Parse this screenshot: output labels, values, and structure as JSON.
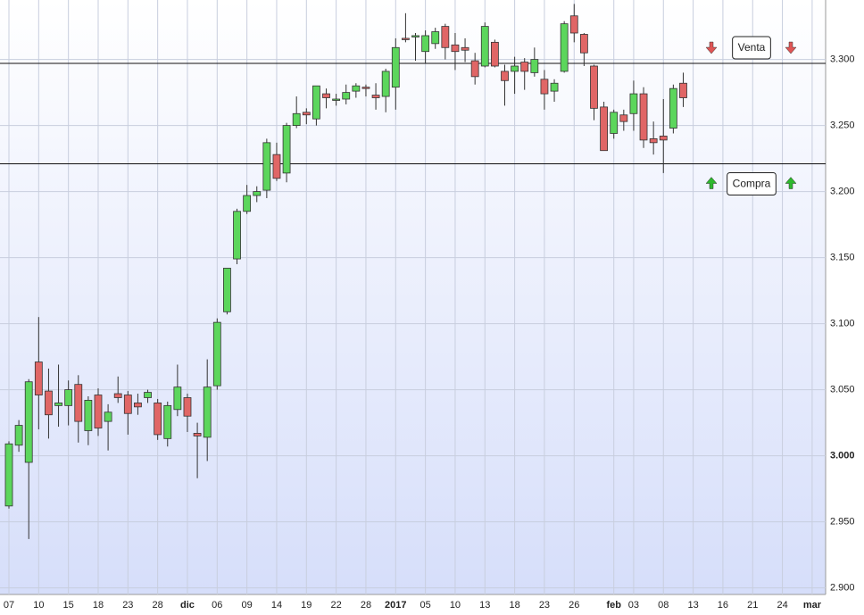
{
  "chart_data": {
    "type": "candlestick",
    "categories": [
      "07",
      null,
      null,
      "10",
      null,
      null,
      "15",
      null,
      null,
      "18",
      null,
      null,
      "23",
      null,
      null,
      "28",
      null,
      null,
      "dic",
      null,
      null,
      "06",
      null,
      null,
      "09",
      null,
      null,
      "14",
      null,
      null,
      "19",
      null,
      null,
      "22",
      null,
      null,
      "28",
      null,
      null,
      "2017",
      null,
      null,
      "05",
      null,
      null,
      "10",
      null,
      null,
      "13",
      null,
      null,
      "18",
      null,
      null,
      "23",
      null,
      null,
      "26",
      null,
      null,
      null,
      "feb",
      null,
      "03",
      null,
      null,
      "08",
      null,
      null,
      "13",
      null,
      null,
      "16",
      null,
      null,
      "21",
      null,
      null,
      "24",
      null,
      null,
      "mar",
      null
    ],
    "open": [
      2.962,
      3.008,
      2.995,
      3.071,
      3.049,
      3.038,
      3.038,
      3.054,
      3.019,
      3.046,
      3.026,
      3.047,
      3.046,
      3.04,
      3.044,
      3.04,
      3.013,
      3.035,
      3.044,
      3.017,
      3.014,
      3.053,
      3.109,
      3.149,
      3.185,
      3.197,
      3.201,
      3.228,
      3.214,
      3.25,
      3.26,
      3.255,
      3.274,
      3.269,
      3.27,
      3.276,
      3.279,
      3.273,
      3.272,
      3.279,
      3.316,
      3.317,
      3.306,
      3.312,
      3.325,
      3.311,
      3.309,
      3.299,
      3.295,
      3.313,
      3.291,
      3.291,
      3.298,
      3.29,
      3.285,
      3.276,
      3.291,
      3.333,
      3.319,
      3.295,
      3.264,
      3.244,
      3.258,
      3.259,
      3.274,
      3.24,
      3.242,
      3.248,
      3.282,
      null,
      null,
      null,
      null,
      null,
      null,
      null,
      null,
      null,
      null,
      null,
      null,
      null,
      null
    ],
    "high": [
      3.011,
      3.027,
      3.058,
      3.105,
      3.066,
      3.069,
      3.057,
      3.061,
      3.045,
      3.051,
      3.039,
      3.06,
      3.049,
      3.047,
      3.05,
      3.043,
      3.041,
      3.069,
      3.047,
      3.025,
      3.073,
      3.104,
      3.142,
      3.187,
      3.205,
      3.204,
      3.24,
      3.237,
      3.252,
      3.272,
      3.263,
      3.28,
      3.278,
      3.274,
      3.281,
      3.282,
      3.281,
      3.282,
      3.293,
      3.316,
      3.335,
      3.32,
      3.322,
      3.324,
      3.327,
      3.32,
      3.316,
      3.305,
      3.328,
      3.315,
      3.296,
      3.302,
      3.301,
      3.309,
      3.292,
      3.285,
      3.329,
      3.342,
      3.32,
      3.296,
      3.268,
      3.262,
      3.262,
      3.284,
      3.279,
      3.253,
      3.27,
      3.281,
      3.29,
      null,
      null,
      null,
      null,
      null,
      null,
      null,
      null,
      null,
      null,
      null,
      null,
      null,
      null
    ],
    "low": [
      2.96,
      3.003,
      2.937,
      3.02,
      3.013,
      3.022,
      3.023,
      3.01,
      3.008,
      3.015,
      3.004,
      3.04,
      3.016,
      3.031,
      3.04,
      3.012,
      3.007,
      3.03,
      3.018,
      2.983,
      2.996,
      3.05,
      3.107,
      3.145,
      3.183,
      3.192,
      3.195,
      3.208,
      3.207,
      3.248,
      3.251,
      3.25,
      3.263,
      3.265,
      3.266,
      3.271,
      3.272,
      3.262,
      3.26,
      3.262,
      3.313,
      3.299,
      3.297,
      3.308,
      3.3,
      3.292,
      3.298,
      3.281,
      3.294,
      3.294,
      3.265,
      3.274,
      3.277,
      3.287,
      3.262,
      3.268,
      3.29,
      3.313,
      3.295,
      3.254,
      3.231,
      3.24,
      3.246,
      3.246,
      3.233,
      3.228,
      3.214,
      3.244,
      3.264,
      null,
      null,
      null,
      null,
      null,
      null,
      null,
      null,
      null,
      null,
      null,
      null,
      null,
      null
    ],
    "close": [
      3.009,
      3.023,
      3.056,
      3.046,
      3.031,
      3.04,
      3.05,
      3.026,
      3.042,
      3.021,
      3.033,
      3.044,
      3.032,
      3.037,
      3.048,
      3.016,
      3.038,
      3.052,
      3.03,
      3.015,
      3.052,
      3.101,
      3.142,
      3.185,
      3.197,
      3.2,
      3.237,
      3.21,
      3.25,
      3.259,
      3.258,
      3.28,
      3.271,
      3.27,
      3.275,
      3.28,
      3.278,
      3.271,
      3.291,
      3.309,
      3.315,
      3.318,
      3.318,
      3.321,
      3.309,
      3.306,
      3.307,
      3.287,
      3.325,
      3.295,
      3.284,
      3.295,
      3.291,
      3.3,
      3.274,
      3.282,
      3.327,
      3.32,
      3.305,
      3.263,
      3.231,
      3.26,
      3.253,
      3.274,
      3.239,
      3.237,
      3.239,
      3.278,
      3.271,
      null,
      null,
      null,
      null,
      null,
      null,
      null,
      null,
      null,
      null,
      null,
      null,
      null,
      null
    ],
    "up_color": "#5cd65c",
    "down_color": "#e06666",
    "ylim": [
      2.895,
      3.345
    ],
    "yticks": [
      {
        "value": 2.9,
        "label": "2.900"
      },
      {
        "value": 2.95,
        "label": "2.950"
      },
      {
        "value": 3,
        "label": "3.000"
      },
      {
        "value": 3.05,
        "label": "3.050"
      },
      {
        "value": 3.1,
        "label": "3.100"
      },
      {
        "value": 3.15,
        "label": "3.150"
      },
      {
        "value": 3.2,
        "label": "3.200"
      },
      {
        "value": 3.25,
        "label": "3.250"
      },
      {
        "value": 3.3,
        "label": "3.300"
      }
    ],
    "grid": true,
    "hlines": [
      {
        "label": "Venta",
        "value": 3.297
      },
      {
        "label": "Compra",
        "value": 3.221
      }
    ]
  }
}
